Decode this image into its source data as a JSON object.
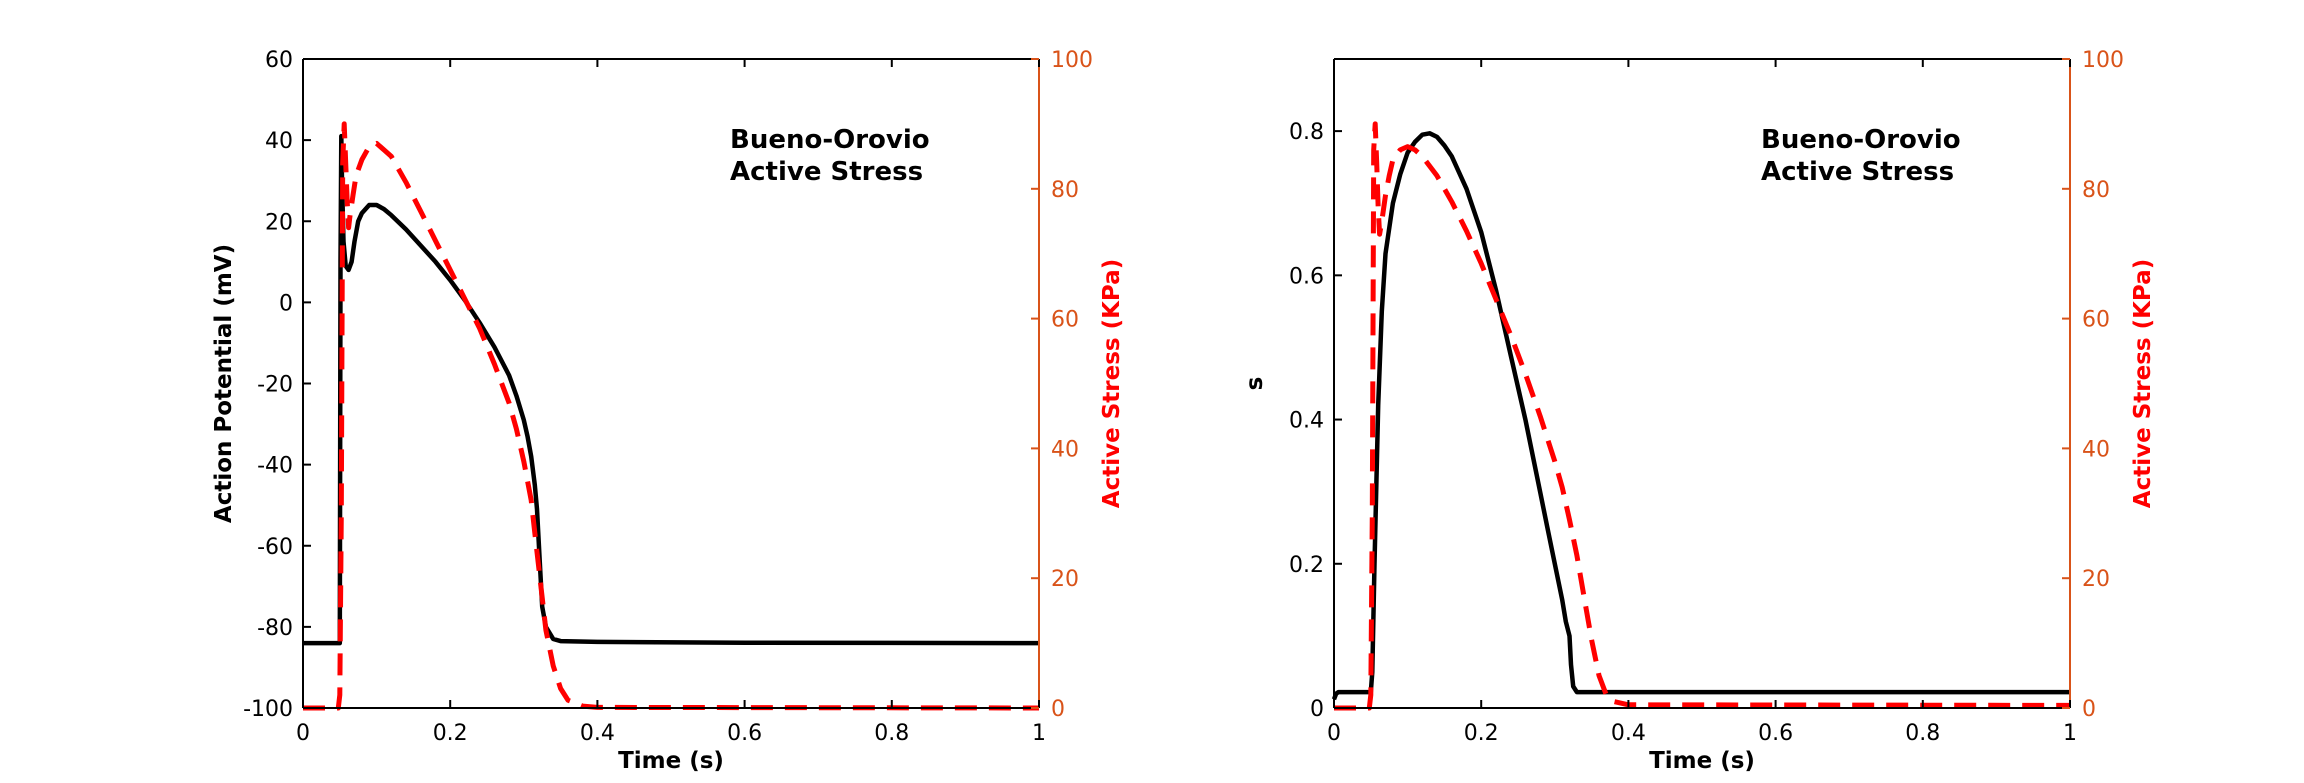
{
  "chart_data": [
    {
      "type": "line",
      "annotation": [
        "Bueno-Orovio",
        "Active Stress"
      ],
      "xlabel": "Time (s)",
      "ylabel": "Action Potential (mV)",
      "y2label": "Active Stress (KPa)",
      "xlim": [
        0,
        1
      ],
      "ylim": [
        -100,
        60
      ],
      "y2lim": [
        0,
        100
      ],
      "xticks": [
        "0",
        "0.2",
        "0.4",
        "0.6",
        "0.8",
        "1"
      ],
      "yticks": [
        "-100",
        "-80",
        "-60",
        "-40",
        "-20",
        "0",
        "20",
        "40",
        "60"
      ],
      "y2ticks": [
        "0",
        "20",
        "40",
        "60",
        "80",
        "100"
      ],
      "grid": false,
      "colors": {
        "primary": "#000000",
        "secondary": "#ff0000",
        "right_axis": "#d95319"
      },
      "series": [
        {
          "axis": "left",
          "style": "solid",
          "color": "#000000",
          "x": [
            0,
            0.049,
            0.05,
            0.051,
            0.052,
            0.053,
            0.055,
            0.058,
            0.062,
            0.066,
            0.07,
            0.075,
            0.08,
            0.09,
            0.1,
            0.11,
            0.12,
            0.14,
            0.16,
            0.18,
            0.2,
            0.22,
            0.24,
            0.26,
            0.28,
            0.29,
            0.3,
            0.305,
            0.31,
            0.315,
            0.318,
            0.32,
            0.322,
            0.325,
            0.33,
            0.34,
            0.35,
            0.4,
            0.6,
            1.0
          ],
          "y": [
            -84,
            -84,
            -84,
            10,
            41,
            30,
            15,
            9,
            8,
            10,
            15,
            20,
            22,
            24,
            24,
            23,
            21.5,
            18,
            14,
            10,
            5.5,
            0.5,
            -5,
            -11,
            -18,
            -23,
            -29,
            -33,
            -38,
            -45,
            -51,
            -58,
            -65,
            -75,
            -80,
            -83,
            -83.5,
            -83.7,
            -83.9,
            -84
          ]
        },
        {
          "axis": "right",
          "style": "dashed",
          "color": "#ff0000",
          "x": [
            0,
            0.048,
            0.05,
            0.052,
            0.054,
            0.056,
            0.058,
            0.06,
            0.062,
            0.064,
            0.068,
            0.072,
            0.08,
            0.09,
            0.1,
            0.11,
            0.12,
            0.14,
            0.16,
            0.18,
            0.2,
            0.22,
            0.24,
            0.26,
            0.28,
            0.29,
            0.3,
            0.31,
            0.315,
            0.32,
            0.325,
            0.33,
            0.34,
            0.35,
            0.36,
            0.38,
            0.4,
            1.0
          ],
          "y": [
            0,
            0,
            2,
            30,
            84,
            90,
            84,
            78,
            74,
            76,
            79,
            82,
            84.5,
            86.5,
            87,
            86,
            85,
            81,
            76.5,
            72,
            67.5,
            63,
            58.5,
            53,
            47,
            43,
            38,
            32,
            27,
            22,
            17,
            12,
            6.5,
            3,
            1.2,
            0.3,
            0.1,
            0
          ]
        }
      ]
    },
    {
      "type": "line",
      "annotation": [
        "Bueno-Orovio",
        "Active Stress"
      ],
      "xlabel": "Time (s)",
      "ylabel": "s",
      "y2label": "Active Stress (KPa)",
      "xlim": [
        0,
        1
      ],
      "ylim": [
        0,
        0.9
      ],
      "y2lim": [
        0,
        100
      ],
      "xticks": [
        "0",
        "0.2",
        "0.4",
        "0.6",
        "0.8",
        "1"
      ],
      "yticks": [
        "0",
        "0.2",
        "0.4",
        "0.6",
        "0.8"
      ],
      "y2ticks": [
        "0",
        "20",
        "40",
        "60",
        "80",
        "100"
      ],
      "grid": false,
      "colors": {
        "primary": "#000000",
        "secondary": "#ff0000",
        "right_axis": "#d95319"
      },
      "series": [
        {
          "axis": "left",
          "style": "solid",
          "color": "#000000",
          "x": [
            0,
            0.003,
            0.006,
            0.05,
            0.052,
            0.055,
            0.06,
            0.065,
            0.07,
            0.08,
            0.09,
            0.1,
            0.11,
            0.12,
            0.13,
            0.14,
            0.15,
            0.16,
            0.18,
            0.2,
            0.22,
            0.24,
            0.26,
            0.28,
            0.29,
            0.3,
            0.31,
            0.315,
            0.32,
            0.322,
            0.325,
            0.33,
            0.34,
            0.35,
            0.4,
            1.0
          ],
          "y": [
            0.012,
            0.02,
            0.022,
            0.022,
            0.05,
            0.2,
            0.42,
            0.55,
            0.63,
            0.7,
            0.74,
            0.77,
            0.785,
            0.795,
            0.797,
            0.792,
            0.78,
            0.765,
            0.72,
            0.66,
            0.58,
            0.49,
            0.4,
            0.3,
            0.25,
            0.2,
            0.15,
            0.12,
            0.1,
            0.06,
            0.03,
            0.022,
            0.022,
            0.022,
            0.022,
            0.022
          ]
        },
        {
          "axis": "right",
          "style": "dashed",
          "color": "#ff0000",
          "x": [
            0,
            0.048,
            0.05,
            0.052,
            0.054,
            0.056,
            0.058,
            0.06,
            0.062,
            0.065,
            0.07,
            0.075,
            0.08,
            0.09,
            0.1,
            0.11,
            0.12,
            0.14,
            0.16,
            0.18,
            0.2,
            0.22,
            0.24,
            0.26,
            0.28,
            0.3,
            0.31,
            0.32,
            0.33,
            0.34,
            0.35,
            0.36,
            0.37,
            0.38,
            0.4,
            1.0
          ],
          "y": [
            0,
            0,
            2,
            30,
            86,
            90,
            84,
            77,
            73,
            75,
            79,
            82,
            84.5,
            86,
            86.5,
            86,
            85,
            82,
            78,
            73.5,
            68.5,
            63,
            57.5,
            51.5,
            45,
            38,
            34,
            29,
            23.5,
            17,
            10.5,
            5,
            2,
            1,
            0.5,
            0.4
          ]
        }
      ]
    }
  ]
}
